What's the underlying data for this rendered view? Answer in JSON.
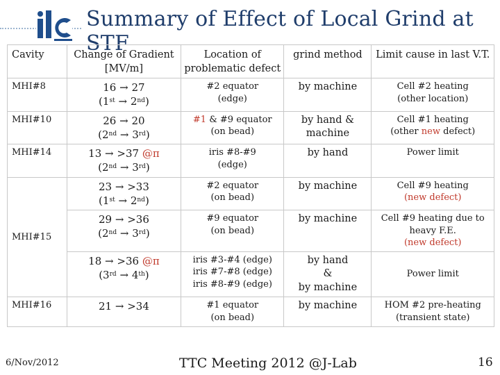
{
  "title": "Summary of Effect of Local Grind at STF",
  "logo_text": "ilc",
  "headers": {
    "cavity": "Cavity",
    "gradient": "Change of Gradient [MV/m]",
    "location": "Location of problematic defect",
    "method": "grind method",
    "limit": "Limit cause in last V.T."
  },
  "arrow": "→",
  "rows": {
    "r1": {
      "cavity": "MHI#8",
      "grad_a": "16",
      "grad_b": "27",
      "t1": "1",
      "t1s": "st",
      "t2": "2",
      "t2s": "nd",
      "loc": "#2 equator",
      "loc2": "(edge)",
      "method": "by machine",
      "limit": "Cell #2 heating",
      "limit2": "(other location)"
    },
    "r2": {
      "cavity": "MHI#10",
      "grad_a": "26",
      "grad_b": "20",
      "t1": "2",
      "t1s": "nd",
      "t2": "3",
      "t2s": "rd",
      "loc_red": "#1",
      "loc": "& #9 equator",
      "loc2": "(on bead)",
      "method": "by hand &",
      "method2": "machine",
      "limit": "Cell #1 heating",
      "limit2a": "(other ",
      "limit2b": "new",
      "limit2c": " defect)"
    },
    "r3": {
      "cavity": "MHI#14",
      "grad_a": "13",
      "grad_b": ">37",
      "grad_red": "@π",
      "t1": "2",
      "t1s": "nd",
      "t2": "3",
      "t2s": "rd",
      "loc": "iris #8-#9",
      "loc2": "(edge)",
      "method": "by hand",
      "limit": "Power limit"
    },
    "r4": {
      "cavity": "MHI#15",
      "grad_a": "23",
      "grad_b": ">33",
      "t1": "1",
      "t1s": "st",
      "t2": "2",
      "t2s": "nd",
      "loc": "#2 equator",
      "loc2": "(on bead)",
      "method": "by machine",
      "limit": "Cell #9 heating",
      "limit2": "(new defect)"
    },
    "r5": {
      "grad_a": "29",
      "grad_b": ">36",
      "t1": "2",
      "t1s": "nd",
      "t2": "3",
      "t2s": "rd",
      "loc": "#9 equator",
      "loc2": "(on bead)",
      "method": "by machine",
      "limit": "Cell #9 heating due to",
      "limit2": "heavy F.E.",
      "limit3": "(new defect)"
    },
    "r6": {
      "grad_a": "18",
      "grad_b": ">36",
      "grad_red": "@π",
      "t1": "3",
      "t1s": "rd",
      "t2": "4",
      "t2s": "th",
      "loc": "iris #3-#4 (edge)",
      "loc2": "iris #7-#8 (edge)",
      "loc3": "iris #8-#9 (edge)",
      "method": "by hand",
      "method2": "&",
      "method3": "by machine",
      "limit": "Power limit"
    },
    "r7": {
      "cavity": "MHI#16",
      "grad_a": "21",
      "grad_b": ">34",
      "loc": "#1 equator",
      "loc2": "(on bead)",
      "method": "by machine",
      "limit": "HOM #2 pre-heating",
      "limit2": "(transient state)"
    }
  },
  "footer": {
    "date": "6/Nov/2012",
    "center": "TTC Meeting 2012 @J-Lab",
    "page": "16"
  },
  "colors": {
    "title": "#1f3d6b",
    "logo": "#1f4e8c",
    "highlight": "#c0392b",
    "dots": "#9bb4cf"
  }
}
